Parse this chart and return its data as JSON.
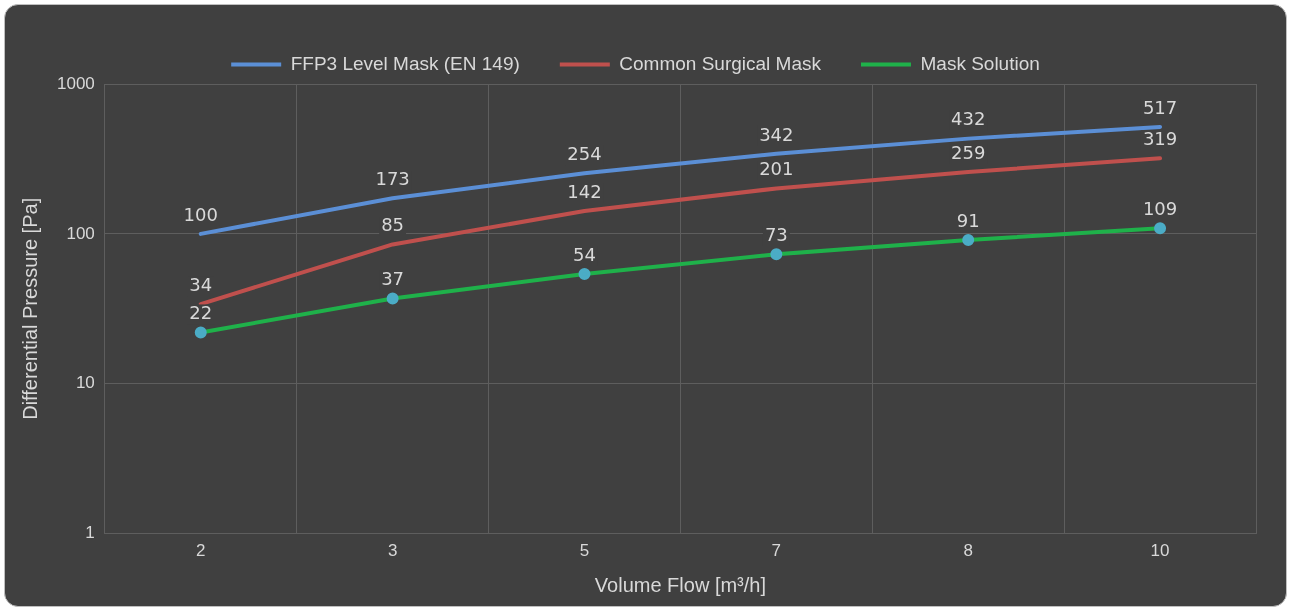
{
  "chart_data": {
    "type": "line",
    "xlabel": "Volume Flow [m³/h]",
    "ylabel": "Differential Pressure [Pa]",
    "categories": [
      "2",
      "3",
      "5",
      "7",
      "8",
      "10"
    ],
    "series": [
      {
        "name": "FFP3 Level Mask (EN 149)",
        "color": "#5b8fd6",
        "values": [
          100,
          173,
          254,
          342,
          432,
          517
        ]
      },
      {
        "name": "Common Surgical Mask",
        "color": "#c0504d",
        "values": [
          34,
          85,
          142,
          201,
          259,
          319
        ]
      },
      {
        "name": "Mask Solution",
        "color": "#1fb14a",
        "values": [
          22,
          37,
          54,
          73,
          91,
          109
        ],
        "marker": "circle"
      }
    ],
    "log": "y",
    "ylim": [
      1,
      1000
    ],
    "yticks": [
      1,
      10,
      100,
      1000
    ],
    "grid": true,
    "legend": "top",
    "data_labels": true,
    "marker": "none",
    "line_style": "solid"
  }
}
